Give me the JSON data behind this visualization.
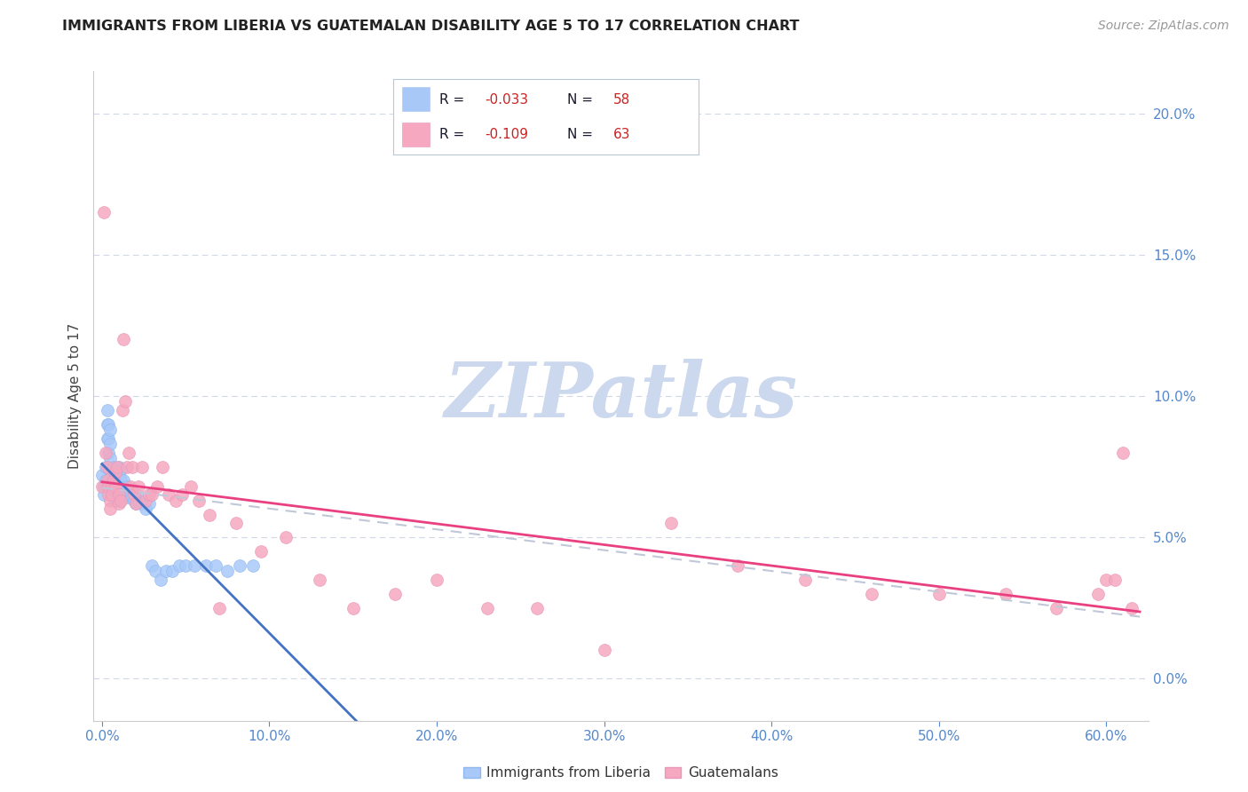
{
  "title": "IMMIGRANTS FROM LIBERIA VS GUATEMALAN DISABILITY AGE 5 TO 17 CORRELATION CHART",
  "source": "Source: ZipAtlas.com",
  "ylabel": "Disability Age 5 to 17",
  "xlabel_ticks": [
    "0.0%",
    "10.0%",
    "20.0%",
    "30.0%",
    "40.0%",
    "50.0%",
    "60.0%"
  ],
  "xlabel_vals": [
    0.0,
    0.1,
    0.2,
    0.3,
    0.4,
    0.5,
    0.6
  ],
  "right_ytick_labels": [
    "0.0%",
    "5.0%",
    "10.0%",
    "15.0%",
    "20.0%"
  ],
  "right_ytick_vals": [
    0.0,
    0.05,
    0.1,
    0.15,
    0.2
  ],
  "xlim": [
    -0.005,
    0.625
  ],
  "ylim": [
    -0.015,
    0.215
  ],
  "liberia_color": "#a8c8f8",
  "guatemalan_color": "#f5a8c0",
  "liberia_line_color": "#4472c4",
  "guatemalan_line_color": "#e84080",
  "combined_dash_color": "#c0c8d8",
  "watermark_text": "ZIPatlas",
  "watermark_color": "#ccd8ee",
  "bg_color": "#ffffff",
  "grid_color": "#d0d8e8",
  "tick_color": "#5588cc",
  "spine_color": "#cccccc",
  "title_color": "#222222",
  "source_color": "#999999",
  "legend_label_color": "#1a1a2e",
  "legend_val_color": "#cc2222",
  "liberia_R": "-0.033",
  "liberia_N": "58",
  "guatemalan_R": "-0.109",
  "guatemalan_N": "63",
  "bottom_legend_label1": "Immigrants from Liberia",
  "bottom_legend_label2": "Guatemalans",
  "liberia_x": [
    0.0,
    0.001,
    0.001,
    0.002,
    0.002,
    0.003,
    0.003,
    0.003,
    0.004,
    0.004,
    0.004,
    0.005,
    0.005,
    0.005,
    0.006,
    0.006,
    0.007,
    0.007,
    0.008,
    0.008,
    0.008,
    0.009,
    0.009,
    0.01,
    0.01,
    0.01,
    0.011,
    0.011,
    0.012,
    0.012,
    0.013,
    0.013,
    0.014,
    0.015,
    0.015,
    0.016,
    0.017,
    0.018,
    0.019,
    0.02,
    0.021,
    0.022,
    0.024,
    0.026,
    0.028,
    0.03,
    0.032,
    0.035,
    0.038,
    0.042,
    0.046,
    0.05,
    0.055,
    0.062,
    0.068,
    0.075,
    0.082,
    0.09
  ],
  "liberia_y": [
    0.072,
    0.068,
    0.065,
    0.075,
    0.07,
    0.095,
    0.09,
    0.085,
    0.09,
    0.085,
    0.08,
    0.088,
    0.083,
    0.078,
    0.072,
    0.068,
    0.075,
    0.07,
    0.065,
    0.068,
    0.063,
    0.068,
    0.065,
    0.075,
    0.072,
    0.068,
    0.074,
    0.07,
    0.068,
    0.065,
    0.07,
    0.066,
    0.065,
    0.068,
    0.064,
    0.065,
    0.066,
    0.064,
    0.063,
    0.062,
    0.065,
    0.063,
    0.062,
    0.06,
    0.062,
    0.04,
    0.038,
    0.035,
    0.038,
    0.038,
    0.04,
    0.04,
    0.04,
    0.04,
    0.04,
    0.038,
    0.04,
    0.04
  ],
  "guatemalan_x": [
    0.0,
    0.001,
    0.002,
    0.003,
    0.003,
    0.004,
    0.004,
    0.005,
    0.005,
    0.006,
    0.006,
    0.007,
    0.008,
    0.008,
    0.009,
    0.01,
    0.01,
    0.011,
    0.012,
    0.013,
    0.014,
    0.015,
    0.016,
    0.017,
    0.018,
    0.019,
    0.02,
    0.022,
    0.024,
    0.026,
    0.028,
    0.03,
    0.033,
    0.036,
    0.04,
    0.044,
    0.048,
    0.053,
    0.058,
    0.064,
    0.07,
    0.08,
    0.095,
    0.11,
    0.13,
    0.15,
    0.175,
    0.2,
    0.23,
    0.26,
    0.3,
    0.34,
    0.38,
    0.42,
    0.46,
    0.5,
    0.54,
    0.57,
    0.595,
    0.6,
    0.605,
    0.61,
    0.615
  ],
  "guatemalan_y": [
    0.068,
    0.165,
    0.08,
    0.075,
    0.07,
    0.065,
    0.068,
    0.063,
    0.06,
    0.068,
    0.065,
    0.07,
    0.073,
    0.068,
    0.075,
    0.065,
    0.062,
    0.063,
    0.095,
    0.12,
    0.098,
    0.075,
    0.08,
    0.068,
    0.075,
    0.065,
    0.062,
    0.068,
    0.075,
    0.063,
    0.065,
    0.065,
    0.068,
    0.075,
    0.065,
    0.063,
    0.065,
    0.068,
    0.063,
    0.058,
    0.025,
    0.055,
    0.045,
    0.05,
    0.035,
    0.025,
    0.03,
    0.035,
    0.025,
    0.025,
    0.01,
    0.055,
    0.04,
    0.035,
    0.03,
    0.03,
    0.03,
    0.025,
    0.03,
    0.035,
    0.035,
    0.08,
    0.025
  ]
}
